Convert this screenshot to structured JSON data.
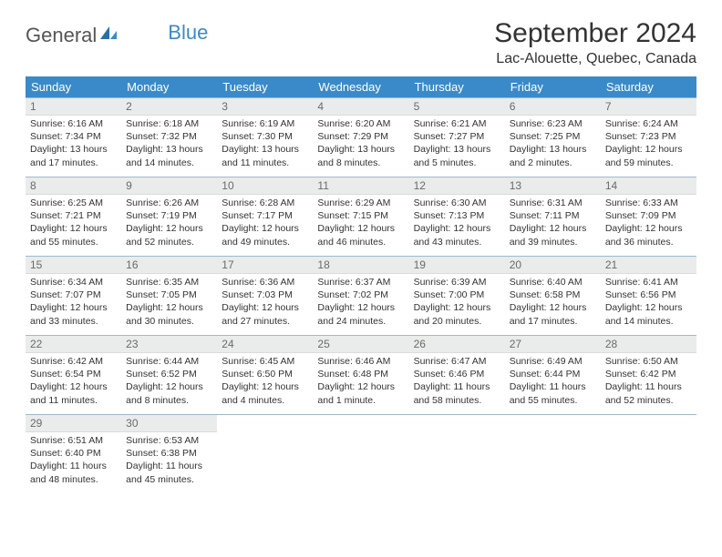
{
  "brand": {
    "word1": "General",
    "word2": "Blue"
  },
  "title": "September 2024",
  "location": "Lac-Alouette, Quebec, Canada",
  "colors": {
    "header_bg": "#3a8ac9",
    "header_text": "#ffffff",
    "daynum_bg": "#e9eceb",
    "daynum_text": "#6a6a6a",
    "border": "#9fb9cf",
    "brand_blue": "#3a8ac9"
  },
  "weekdays": [
    "Sunday",
    "Monday",
    "Tuesday",
    "Wednesday",
    "Thursday",
    "Friday",
    "Saturday"
  ],
  "days": [
    {
      "n": "1",
      "sr": "6:16 AM",
      "ss": "7:34 PM",
      "dl": "13 hours and 17 minutes."
    },
    {
      "n": "2",
      "sr": "6:18 AM",
      "ss": "7:32 PM",
      "dl": "13 hours and 14 minutes."
    },
    {
      "n": "3",
      "sr": "6:19 AM",
      "ss": "7:30 PM",
      "dl": "13 hours and 11 minutes."
    },
    {
      "n": "4",
      "sr": "6:20 AM",
      "ss": "7:29 PM",
      "dl": "13 hours and 8 minutes."
    },
    {
      "n": "5",
      "sr": "6:21 AM",
      "ss": "7:27 PM",
      "dl": "13 hours and 5 minutes."
    },
    {
      "n": "6",
      "sr": "6:23 AM",
      "ss": "7:25 PM",
      "dl": "13 hours and 2 minutes."
    },
    {
      "n": "7",
      "sr": "6:24 AM",
      "ss": "7:23 PM",
      "dl": "12 hours and 59 minutes."
    },
    {
      "n": "8",
      "sr": "6:25 AM",
      "ss": "7:21 PM",
      "dl": "12 hours and 55 minutes."
    },
    {
      "n": "9",
      "sr": "6:26 AM",
      "ss": "7:19 PM",
      "dl": "12 hours and 52 minutes."
    },
    {
      "n": "10",
      "sr": "6:28 AM",
      "ss": "7:17 PM",
      "dl": "12 hours and 49 minutes."
    },
    {
      "n": "11",
      "sr": "6:29 AM",
      "ss": "7:15 PM",
      "dl": "12 hours and 46 minutes."
    },
    {
      "n": "12",
      "sr": "6:30 AM",
      "ss": "7:13 PM",
      "dl": "12 hours and 43 minutes."
    },
    {
      "n": "13",
      "sr": "6:31 AM",
      "ss": "7:11 PM",
      "dl": "12 hours and 39 minutes."
    },
    {
      "n": "14",
      "sr": "6:33 AM",
      "ss": "7:09 PM",
      "dl": "12 hours and 36 minutes."
    },
    {
      "n": "15",
      "sr": "6:34 AM",
      "ss": "7:07 PM",
      "dl": "12 hours and 33 minutes."
    },
    {
      "n": "16",
      "sr": "6:35 AM",
      "ss": "7:05 PM",
      "dl": "12 hours and 30 minutes."
    },
    {
      "n": "17",
      "sr": "6:36 AM",
      "ss": "7:03 PM",
      "dl": "12 hours and 27 minutes."
    },
    {
      "n": "18",
      "sr": "6:37 AM",
      "ss": "7:02 PM",
      "dl": "12 hours and 24 minutes."
    },
    {
      "n": "19",
      "sr": "6:39 AM",
      "ss": "7:00 PM",
      "dl": "12 hours and 20 minutes."
    },
    {
      "n": "20",
      "sr": "6:40 AM",
      "ss": "6:58 PM",
      "dl": "12 hours and 17 minutes."
    },
    {
      "n": "21",
      "sr": "6:41 AM",
      "ss": "6:56 PM",
      "dl": "12 hours and 14 minutes."
    },
    {
      "n": "22",
      "sr": "6:42 AM",
      "ss": "6:54 PM",
      "dl": "12 hours and 11 minutes."
    },
    {
      "n": "23",
      "sr": "6:44 AM",
      "ss": "6:52 PM",
      "dl": "12 hours and 8 minutes."
    },
    {
      "n": "24",
      "sr": "6:45 AM",
      "ss": "6:50 PM",
      "dl": "12 hours and 4 minutes."
    },
    {
      "n": "25",
      "sr": "6:46 AM",
      "ss": "6:48 PM",
      "dl": "12 hours and 1 minute."
    },
    {
      "n": "26",
      "sr": "6:47 AM",
      "ss": "6:46 PM",
      "dl": "11 hours and 58 minutes."
    },
    {
      "n": "27",
      "sr": "6:49 AM",
      "ss": "6:44 PM",
      "dl": "11 hours and 55 minutes."
    },
    {
      "n": "28",
      "sr": "6:50 AM",
      "ss": "6:42 PM",
      "dl": "11 hours and 52 minutes."
    },
    {
      "n": "29",
      "sr": "6:51 AM",
      "ss": "6:40 PM",
      "dl": "11 hours and 48 minutes."
    },
    {
      "n": "30",
      "sr": "6:53 AM",
      "ss": "6:38 PM",
      "dl": "11 hours and 45 minutes."
    }
  ],
  "labels": {
    "sunrise": "Sunrise:",
    "sunset": "Sunset:",
    "daylight": "Daylight:"
  }
}
